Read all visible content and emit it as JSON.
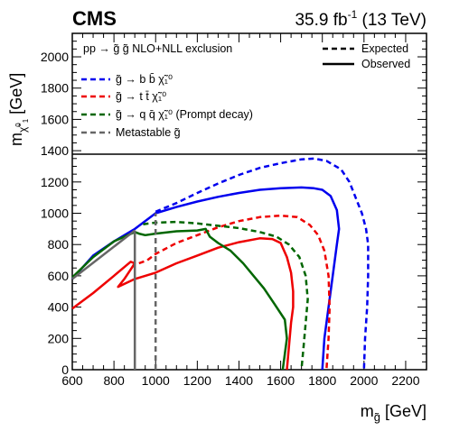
{
  "header": {
    "experiment": "CMS",
    "lumi": "35.9 fb",
    "lumi_exp": "-1",
    "energy": " (13 TeV)"
  },
  "chart_data": {
    "type": "line",
    "xlabel_main": "m",
    "xlabel_sub": "g̃",
    "xlabel_unit": " [GeV]",
    "ylabel_main": "m",
    "ylabel_sub": "χ̃",
    "ylabel_subsup": "0",
    "ylabel_subsub": "1",
    "ylabel_unit": " [GeV]",
    "xlim": [
      600,
      2300
    ],
    "ylim": [
      0,
      2150
    ],
    "xticks": [
      600,
      800,
      1000,
      1200,
      1400,
      1600,
      1800,
      2000,
      2200
    ],
    "yticks": [
      0,
      200,
      400,
      600,
      800,
      1000,
      1200,
      1400,
      1600,
      1800,
      2000
    ],
    "legend_header": "pp → g̃ g̃   NLO+NLL exclusion",
    "style_legend": [
      {
        "label": "Expected",
        "dash": true
      },
      {
        "label": "Observed",
        "dash": false
      }
    ],
    "process_legend": [
      {
        "label": "g̃ → b b̄ χ̃₁⁰",
        "color": "#0000ee"
      },
      {
        "label": "g̃ → t t̄ χ̃₁⁰",
        "color": "#ee0000"
      },
      {
        "label": "g̃ → q q̄ χ̃₁⁰ (Prompt decay)",
        "color": "#006600"
      },
      {
        "label": "Metastable g̃",
        "color": "#666666"
      }
    ],
    "series": [
      {
        "key": "bb-obs",
        "color": "#0000ee",
        "dashed": false,
        "points": [
          [
            600,
            580
          ],
          [
            700,
            730
          ],
          [
            800,
            820
          ],
          [
            900,
            900
          ],
          [
            1000,
            1000
          ],
          [
            1100,
            1040
          ],
          [
            1200,
            1075
          ],
          [
            1300,
            1105
          ],
          [
            1400,
            1130
          ],
          [
            1500,
            1150
          ],
          [
            1600,
            1160
          ],
          [
            1700,
            1165
          ],
          [
            1760,
            1160
          ],
          [
            1800,
            1150
          ],
          [
            1840,
            1110
          ],
          [
            1870,
            1020
          ],
          [
            1880,
            900
          ],
          [
            1870,
            800
          ],
          [
            1850,
            600
          ],
          [
            1830,
            400
          ],
          [
            1810,
            200
          ],
          [
            1800,
            0
          ]
        ]
      },
      {
        "key": "bb-exp",
        "color": "#0000ee",
        "dashed": true,
        "points": [
          [
            1000,
            1010
          ],
          [
            1100,
            1065
          ],
          [
            1200,
            1130
          ],
          [
            1300,
            1190
          ],
          [
            1400,
            1245
          ],
          [
            1500,
            1290
          ],
          [
            1600,
            1320
          ],
          [
            1700,
            1345
          ],
          [
            1760,
            1350
          ],
          [
            1820,
            1335
          ],
          [
            1890,
            1280
          ],
          [
            1930,
            1200
          ],
          [
            1960,
            1100
          ],
          [
            1990,
            1000
          ],
          [
            2010,
            900
          ],
          [
            2020,
            800
          ],
          [
            2020,
            600
          ],
          [
            2015,
            400
          ],
          [
            2005,
            200
          ],
          [
            2000,
            0
          ]
        ]
      },
      {
        "key": "tt-obs",
        "color": "#ee0000",
        "dashed": false,
        "points": [
          [
            600,
            390
          ],
          [
            700,
            490
          ],
          [
            800,
            600
          ],
          [
            880,
            690
          ],
          [
            900,
            680
          ],
          [
            850,
            580
          ],
          [
            820,
            530
          ],
          [
            900,
            580
          ],
          [
            1000,
            620
          ],
          [
            1100,
            680
          ],
          [
            1200,
            730
          ],
          [
            1300,
            780
          ],
          [
            1400,
            815
          ],
          [
            1500,
            840
          ],
          [
            1560,
            835
          ],
          [
            1600,
            810
          ],
          [
            1630,
            720
          ],
          [
            1650,
            620
          ],
          [
            1660,
            500
          ],
          [
            1660,
            400
          ],
          [
            1650,
            300
          ],
          [
            1640,
            150
          ],
          [
            1630,
            0
          ]
        ]
      },
      {
        "key": "tt-exp",
        "color": "#ee0000",
        "dashed": true,
        "points": [
          [
            920,
            680
          ],
          [
            960,
            700
          ],
          [
            1000,
            740
          ],
          [
            1100,
            810
          ],
          [
            1200,
            860
          ],
          [
            1300,
            910
          ],
          [
            1400,
            950
          ],
          [
            1500,
            975
          ],
          [
            1600,
            985
          ],
          [
            1680,
            975
          ],
          [
            1740,
            925
          ],
          [
            1780,
            860
          ],
          [
            1810,
            760
          ],
          [
            1830,
            600
          ],
          [
            1835,
            400
          ],
          [
            1830,
            200
          ],
          [
            1820,
            0
          ]
        ]
      },
      {
        "key": "qq-obs",
        "color": "#006600",
        "dashed": false,
        "points": [
          [
            600,
            590
          ],
          [
            700,
            720
          ],
          [
            800,
            820
          ],
          [
            900,
            880
          ],
          [
            920,
            870
          ],
          [
            950,
            860
          ],
          [
            1000,
            870
          ],
          [
            1100,
            885
          ],
          [
            1200,
            890
          ],
          [
            1240,
            900
          ],
          [
            1260,
            850
          ],
          [
            1300,
            810
          ],
          [
            1360,
            760
          ],
          [
            1420,
            680
          ],
          [
            1470,
            600
          ],
          [
            1520,
            520
          ],
          [
            1570,
            420
          ],
          [
            1620,
            320
          ],
          [
            1630,
            200
          ],
          [
            1620,
            100
          ],
          [
            1610,
            0
          ]
        ]
      },
      {
        "key": "qq-exp",
        "color": "#006600",
        "dashed": true,
        "points": [
          [
            940,
            930
          ],
          [
            1000,
            940
          ],
          [
            1100,
            945
          ],
          [
            1200,
            935
          ],
          [
            1300,
            920
          ],
          [
            1400,
            905
          ],
          [
            1500,
            880
          ],
          [
            1580,
            850
          ],
          [
            1640,
            800
          ],
          [
            1690,
            720
          ],
          [
            1720,
            600
          ],
          [
            1730,
            450
          ],
          [
            1720,
            300
          ],
          [
            1710,
            150
          ],
          [
            1700,
            0
          ]
        ]
      },
      {
        "key": "meta-obs",
        "color": "#666666",
        "dashed": false,
        "points": [
          [
            900,
            0
          ],
          [
            900,
            890
          ]
        ]
      },
      {
        "key": "meta-exp",
        "color": "#666666",
        "dashed": true,
        "points": [
          [
            1000,
            0
          ],
          [
            1000,
            1000
          ]
        ]
      },
      {
        "key": "diag",
        "color": "#666666",
        "dashed": false,
        "points": [
          [
            600,
            580
          ],
          [
            900,
            890
          ]
        ]
      }
    ]
  }
}
